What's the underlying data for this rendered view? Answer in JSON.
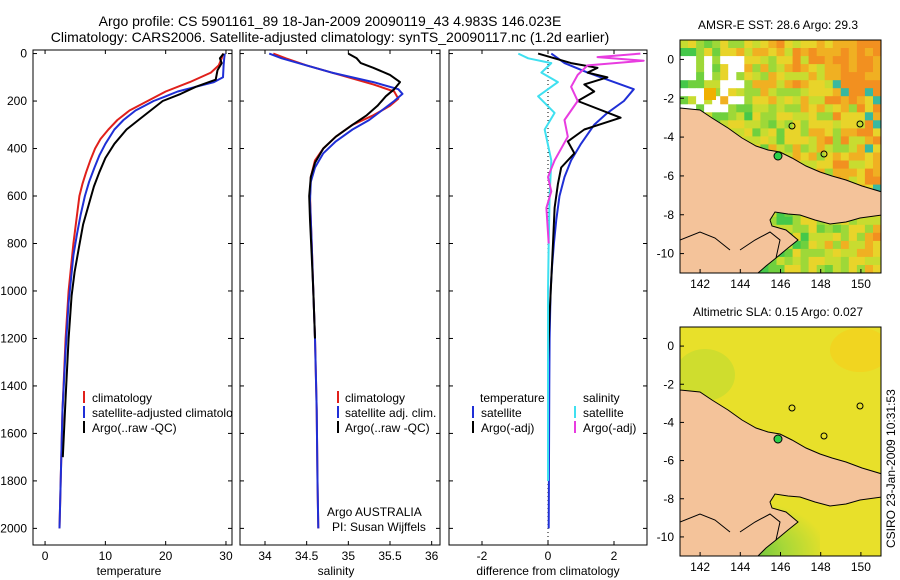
{
  "header": {
    "line1": "Argo profile: CS 5901161_89 18-Jan-2009 20090119_43 4.983S 146.023E",
    "line2": "Climatology: CARS2006. Satellite-adjusted climatology: synTS_20090117.nc (1.2d earlier)"
  },
  "colors": {
    "climatology": "#e0201b",
    "satellite": "#1f2fd6",
    "argo": "#000000",
    "salinity_satellite": "#3fe0f0",
    "salinity_argo": "#e83ce0"
  },
  "credit": "CSIRO 23-Jan-2009 10:31:53",
  "attribution": {
    "line1": "Argo AUSTRALIA",
    "line2": "PI: Susan Wijffels"
  },
  "chart_data": [
    {
      "id": "temperature",
      "type": "line",
      "xlabel": "temperature",
      "xlim": [
        -2,
        31
      ],
      "ylim": [
        2050,
        0
      ],
      "xticks": [
        0,
        10,
        20,
        30
      ],
      "yticks": [
        0,
        200,
        400,
        600,
        800,
        1000,
        1200,
        1400,
        1600,
        1800,
        2000
      ],
      "legend": [
        "climatology",
        "satellite-adjusted climatology",
        "Argo(..raw -QC)"
      ],
      "series": [
        {
          "name": "climatology",
          "color": "#e0201b",
          "x": [
            29.5,
            29.3,
            28.8,
            27.5,
            24,
            20,
            17,
            14,
            12,
            10.5,
            9.2,
            8.3,
            7.5,
            6.8,
            6.2,
            5.7,
            5.2,
            4.7,
            4.3,
            3.9,
            3.4,
            2.9,
            2.6,
            2.4
          ],
          "y": [
            0,
            20,
            50,
            80,
            120,
            160,
            200,
            240,
            280,
            320,
            360,
            400,
            450,
            500,
            550,
            600,
            700,
            800,
            900,
            1000,
            1200,
            1500,
            1800,
            2000
          ]
        },
        {
          "name": "satellite-adjusted climatology",
          "color": "#1f2fd6",
          "x": [
            29.8,
            29.7,
            29.6,
            29.5,
            28,
            25,
            22,
            20,
            18,
            16.5,
            15,
            13,
            11.5,
            10,
            9,
            8.2,
            7.3,
            6.6,
            5.9,
            5.3,
            4.7,
            4.3,
            3.9,
            3.4,
            2.9,
            2.6,
            2.4
          ],
          "y": [
            0,
            20,
            50,
            100,
            120,
            140,
            160,
            180,
            200,
            220,
            240,
            280,
            320,
            380,
            430,
            480,
            540,
            600,
            680,
            760,
            850,
            950,
            1050,
            1250,
            1500,
            1800,
            2000
          ]
        },
        {
          "name": "Argo(..raw -QC)",
          "color": "#000000",
          "x": [
            29.6,
            29.0,
            29.3,
            28.6,
            28.3,
            25,
            22.5,
            19.5,
            17.5,
            15.5,
            13.5,
            11.5,
            10,
            9,
            8.1,
            7.2,
            6.3,
            5.6,
            4.9,
            4.4,
            3.9,
            3.4,
            2.95
          ],
          "y": [
            0,
            20,
            40,
            70,
            110,
            140,
            170,
            200,
            240,
            280,
            320,
            380,
            440,
            500,
            560,
            640,
            720,
            820,
            920,
            1020,
            1200,
            1450,
            1700
          ]
        }
      ]
    },
    {
      "id": "salinity",
      "type": "line",
      "xlabel": "salinity",
      "xlim": [
        33.7,
        36.1
      ],
      "ylim": [
        2050,
        0
      ],
      "xticks": [
        34,
        34.5,
        35,
        35.5,
        36
      ],
      "xticklabels": [
        "34",
        "34.5",
        "35",
        "35.5",
        "36"
      ],
      "yticks": [
        0,
        200,
        400,
        600,
        800,
        1000,
        1200,
        1400,
        1600,
        1800,
        2000
      ],
      "legend": [
        "climatology",
        "satellite adj. clim.",
        "Argo(..raw -QC)"
      ],
      "series": [
        {
          "name": "climatology",
          "color": "#e0201b",
          "x": [
            34.1,
            34.25,
            34.5,
            34.9,
            35.3,
            35.55,
            35.6,
            35.5,
            35.3,
            35.05,
            34.85,
            34.7,
            34.6,
            34.55,
            34.54,
            34.55,
            34.56,
            34.58,
            34.6,
            34.62,
            34.63,
            34.64
          ],
          "y": [
            0,
            20,
            50,
            90,
            130,
            160,
            190,
            220,
            260,
            300,
            350,
            400,
            450,
            520,
            600,
            700,
            800,
            1000,
            1200,
            1500,
            1800,
            2000
          ]
        },
        {
          "name": "satellite adj. clim.",
          "color": "#1f2fd6",
          "x": [
            34.05,
            34.2,
            34.4,
            34.8,
            35.3,
            35.6,
            35.65,
            35.55,
            35.4,
            35.25,
            35.05,
            34.85,
            34.7,
            34.6,
            34.55,
            34.54,
            34.55,
            34.56,
            34.58,
            34.6,
            34.62,
            34.63,
            34.64
          ],
          "y": [
            0,
            20,
            40,
            80,
            120,
            150,
            170,
            200,
            240,
            280,
            320,
            370,
            420,
            480,
            540,
            620,
            700,
            800,
            1000,
            1200,
            1500,
            1800,
            2000
          ]
        },
        {
          "name": "Argo(..raw -QC)",
          "color": "#000000",
          "x": [
            35.0,
            35.1,
            35.15,
            35.3,
            35.5,
            35.62,
            35.55,
            35.45,
            35.35,
            35.22,
            35.05,
            34.85,
            34.7,
            34.6,
            34.55,
            34.53,
            34.54,
            34.56,
            34.58,
            34.6
          ],
          "y": [
            0,
            20,
            40,
            60,
            90,
            120,
            150,
            180,
            220,
            260,
            300,
            350,
            400,
            460,
            520,
            600,
            700,
            850,
            1000,
            1200
          ]
        }
      ]
    },
    {
      "id": "difference",
      "type": "line",
      "xlabel": "difference from climatology",
      "xlim": [
        -3,
        3
      ],
      "ylim": [
        2050,
        0
      ],
      "xticks": [
        -2,
        0,
        2
      ],
      "yticks": [
        0,
        200,
        400,
        600,
        800,
        1000,
        1200,
        1400,
        1600,
        1800,
        2000
      ],
      "legend_groups": [
        "temperature",
        "salinity"
      ],
      "legend": [
        "satellite",
        "Argo(-adj)",
        "satellite",
        "Argo(-adj)"
      ],
      "series": [
        {
          "name": "temperature satellite",
          "color": "#1f2fd6",
          "x": [
            0.1,
            0.5,
            1.2,
            1.8,
            2.6,
            2.3,
            1.8,
            1.4,
            1.0,
            0.7,
            0.5,
            0.35,
            0.25,
            0.18,
            0.12,
            0.08,
            0.05,
            0.04,
            0.03,
            0.02
          ],
          "y": [
            0,
            40,
            80,
            110,
            150,
            200,
            250,
            300,
            380,
            450,
            520,
            600,
            700,
            800,
            900,
            1000,
            1200,
            1400,
            1700,
            2000
          ]
        },
        {
          "name": "temperature Argo(-adj)",
          "color": "#000000",
          "x": [
            -0.3,
            0.2,
            0.7,
            1.5,
            1.2,
            1.8,
            1.1,
            1.4,
            0.9,
            2.2,
            1.1,
            0.6,
            0.8,
            0.4,
            0.3,
            0.2,
            0.15,
            0.1,
            0.05,
            0.0
          ],
          "y": [
            0,
            20,
            40,
            60,
            80,
            100,
            130,
            160,
            200,
            270,
            320,
            370,
            420,
            480,
            550,
            650,
            800,
            950,
            1100,
            1300
          ]
        },
        {
          "name": "salinity satellite",
          "color": "#3fe0f0",
          "x": [
            -0.9,
            -0.6,
            0.1,
            -0.2,
            0.3,
            -0.3,
            0.2,
            -0.1,
            0.1,
            0.05,
            0.02,
            0.0,
            0.0,
            0.0
          ],
          "y": [
            0,
            20,
            40,
            80,
            120,
            180,
            250,
            320,
            450,
            600,
            800,
            1000,
            1400,
            1800
          ]
        },
        {
          "name": "salinity Argo(-adj)",
          "color": "#e83ce0",
          "x": [
            2.8,
            1.5,
            2.9,
            1.2,
            0.9,
            0.7,
            0.9,
            0.5,
            0.6,
            0.2,
            0.0,
            0.1,
            -0.05,
            0.02
          ],
          "y": [
            0,
            15,
            30,
            50,
            90,
            140,
            200,
            280,
            350,
            450,
            520,
            580,
            650,
            800
          ]
        }
      ]
    },
    {
      "id": "sst-map",
      "type": "heatmap",
      "title": "AMSR-E SST: 28.6 Argo: 29.3",
      "xticks": [
        142,
        144,
        146,
        148,
        150
      ],
      "yticks": [
        0,
        -2,
        -4,
        -6,
        -8,
        -10
      ],
      "xlim": [
        141,
        151
      ],
      "ylim": [
        -11,
        1
      ]
    },
    {
      "id": "sla-map",
      "type": "heatmap",
      "title": "Altimetric SLA: 0.15 Argo: 0.027",
      "xticks": [
        142,
        144,
        146,
        148,
        150
      ],
      "yticks": [
        0,
        -2,
        -4,
        -6,
        -8,
        -10
      ],
      "xlim": [
        141,
        151
      ],
      "ylim": [
        -11,
        1
      ]
    }
  ]
}
